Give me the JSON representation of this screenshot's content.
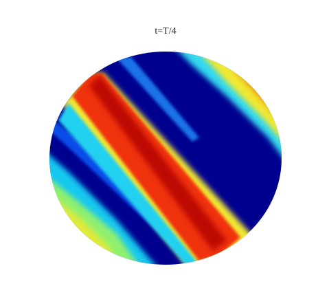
{
  "title": "t=T/4"
}
